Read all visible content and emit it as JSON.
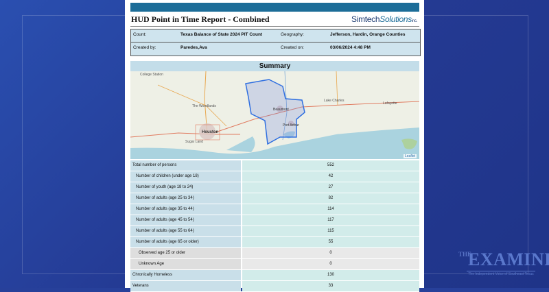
{
  "report": {
    "title": "HUD Point in Time Report - Combined",
    "brand_a": "Simtech",
    "brand_b": "Solutions",
    "brand_inc": "inc."
  },
  "info": {
    "count_label": "Count:",
    "count_value": "Texas Balance of State 2024 PIT Count",
    "geography_label": "Geography:",
    "geography_value": "Jefferson, Hardin, Orange Counties",
    "created_by_label": "Created by:",
    "created_by_value": "Paredes,Ava",
    "created_on_label": "Created on:",
    "created_on_value": "03/06/2024 4:48 PM"
  },
  "summary": {
    "heading": "Summary",
    "map_labels": [
      "College Station",
      "The Woodlands",
      "Houston",
      "Sugar Land",
      "Beaumont",
      "Port Arthur",
      "Lake Charles",
      "Lafayette"
    ],
    "attribution": "Leaflet"
  },
  "table": {
    "rows": [
      {
        "label": "Total number of persons",
        "value": "552",
        "level": 0,
        "shade": "blue"
      },
      {
        "label": "Number of children (under age 18)",
        "value": "42",
        "level": 1,
        "shade": "blue"
      },
      {
        "label": "Number of youth (age 18 to 24)",
        "value": "27",
        "level": 1,
        "shade": "blue"
      },
      {
        "label": "Number of adults (age 25 to 34)",
        "value": "82",
        "level": 1,
        "shade": "blue"
      },
      {
        "label": "Number of adults (age 35 to 44)",
        "value": "114",
        "level": 1,
        "shade": "blue"
      },
      {
        "label": "Number of adults (age 45 to 54)",
        "value": "117",
        "level": 1,
        "shade": "blue"
      },
      {
        "label": "Number of adults (age 55 to 64)",
        "value": "115",
        "level": 1,
        "shade": "blue"
      },
      {
        "label": "Number of adults (age 65 or older)",
        "value": "55",
        "level": 1,
        "shade": "blue"
      },
      {
        "label": "Observed age 25 or older",
        "value": "0",
        "level": 2,
        "shade": "gray"
      },
      {
        "label": "Unknown Age",
        "value": "0",
        "level": 2,
        "shade": "gray"
      },
      {
        "label": "Chronically Homeless",
        "value": "130",
        "level": 0,
        "shade": "blue"
      },
      {
        "label": "Veterans",
        "value": "33",
        "level": 0,
        "shade": "blue"
      }
    ]
  },
  "watermark": {
    "the": "THE",
    "name": "EXAMINER",
    "tagline": "The Independent Voice of Southeast Texas"
  },
  "colors": {
    "background": "#27409a",
    "header_bar": "#1c6d98",
    "label_cell": "#c9dfe9",
    "value_cell": "#d2ecea",
    "boundary": "#2f6fe0"
  }
}
